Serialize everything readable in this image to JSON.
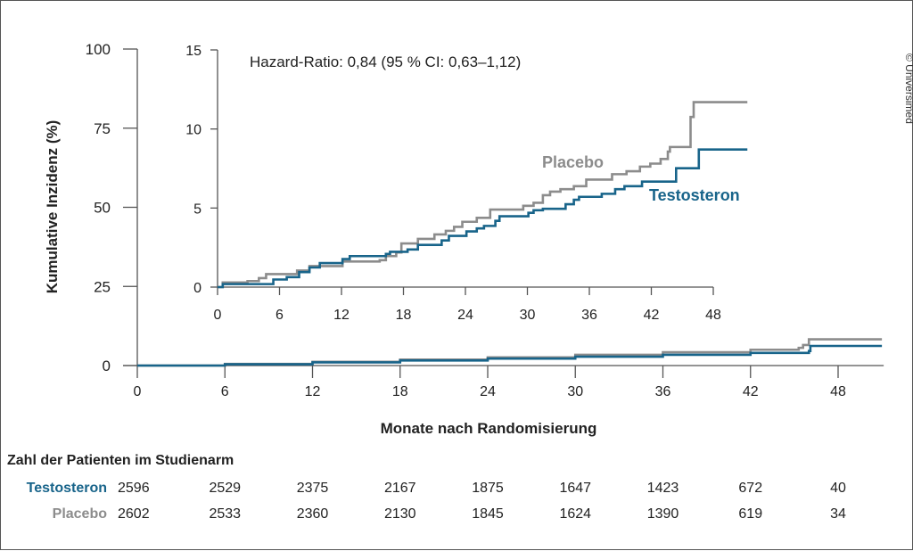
{
  "colors": {
    "testosteron": "#18648a",
    "placebo": "#8c8c8c",
    "axis": "#555555"
  },
  "copyright": "© Universimed",
  "chart_data": [
    {
      "type": "line",
      "step": true,
      "xlabel": "Monate nach Randomisierung",
      "ylabel": "Kumulative Inzidenz (%)",
      "xlim": [
        0,
        51
      ],
      "ylim": [
        0,
        100
      ],
      "xticks": [
        0,
        6,
        12,
        18,
        24,
        30,
        36,
        42,
        48
      ],
      "yticks": [
        0,
        25,
        50,
        75,
        100
      ],
      "series": [
        {
          "name": "Placebo",
          "points": [
            [
              0,
              0
            ],
            [
              6,
              0.5
            ],
            [
              12,
              1.2
            ],
            [
              18,
              1.9
            ],
            [
              24,
              2.6
            ],
            [
              30,
              3.4
            ],
            [
              36,
              4.2
            ],
            [
              42,
              5.0
            ],
            [
              45.3,
              5.6
            ],
            [
              45.6,
              6.5
            ],
            [
              46,
              8.3
            ],
            [
              51,
              8.3
            ]
          ]
        },
        {
          "name": "Testosteron",
          "points": [
            [
              0,
              0
            ],
            [
              6,
              0.4
            ],
            [
              12,
              1.0
            ],
            [
              18,
              1.6
            ],
            [
              24,
              2.2
            ],
            [
              30,
              2.8
            ],
            [
              36,
              3.4
            ],
            [
              42,
              4.0
            ],
            [
              46,
              4.6
            ],
            [
              46.1,
              6.2
            ],
            [
              51,
              6.2
            ]
          ]
        }
      ],
      "risk_table": {
        "title": "Zahl der Patienten im Studienarm",
        "rows": [
          {
            "name": "Testosteron",
            "values": [
              2596,
              2529,
              2375,
              2167,
              1875,
              1647,
              1423,
              672,
              40
            ]
          },
          {
            "name": "Placebo",
            "values": [
              2602,
              2533,
              2360,
              2130,
              1845,
              1624,
              1390,
              619,
              34
            ]
          }
        ]
      }
    },
    {
      "type": "line",
      "step": true,
      "annotation": "Hazard-Ratio: 0,84 (95 % CI: 0,63–1,12)",
      "xlim": [
        0,
        51
      ],
      "ylim": [
        0,
        15
      ],
      "xticks": [
        0,
        6,
        12,
        18,
        24,
        30,
        36,
        42,
        48
      ],
      "yticks": [
        0,
        5,
        10,
        15
      ],
      "series": [
        {
          "name": "Placebo",
          "points": [
            [
              0,
              0
            ],
            [
              0.5,
              0.29
            ],
            [
              2.9,
              0.38
            ],
            [
              4.0,
              0.57
            ],
            [
              4.7,
              0.82
            ],
            [
              7.7,
              1.05
            ],
            [
              8.9,
              1.33
            ],
            [
              12.1,
              1.62
            ],
            [
              15.7,
              1.7
            ],
            [
              16.3,
              1.96
            ],
            [
              17.3,
              2.19
            ],
            [
              17.8,
              2.76
            ],
            [
              19.4,
              3.05
            ],
            [
              21.0,
              3.33
            ],
            [
              22.1,
              3.56
            ],
            [
              22.9,
              3.81
            ],
            [
              23.7,
              4.13
            ],
            [
              25.1,
              4.38
            ],
            [
              26.4,
              4.9
            ],
            [
              29.6,
              5.14
            ],
            [
              30.6,
              5.33
            ],
            [
              31.5,
              5.81
            ],
            [
              32.2,
              6.04
            ],
            [
              33.2,
              6.19
            ],
            [
              34.5,
              6.38
            ],
            [
              35.7,
              6.8
            ],
            [
              38.2,
              7.14
            ],
            [
              39.6,
              7.33
            ],
            [
              40.9,
              7.62
            ],
            [
              41.9,
              7.81
            ],
            [
              42.9,
              8.1
            ],
            [
              43.6,
              8.57
            ],
            [
              43.8,
              8.86
            ],
            [
              45.8,
              10.76
            ],
            [
              46.1,
              11.7
            ],
            [
              51.3,
              11.7
            ]
          ]
        },
        {
          "name": "Testosteron",
          "points": [
            [
              0,
              0
            ],
            [
              0.5,
              0.19
            ],
            [
              5.4,
              0.48
            ],
            [
              6.7,
              0.63
            ],
            [
              7.9,
              0.95
            ],
            [
              8.9,
              1.24
            ],
            [
              9.9,
              1.52
            ],
            [
              12.1,
              1.77
            ],
            [
              12.8,
              1.96
            ],
            [
              16.3,
              2.1
            ],
            [
              16.7,
              2.23
            ],
            [
              18.4,
              2.38
            ],
            [
              19.4,
              2.67
            ],
            [
              21.7,
              2.95
            ],
            [
              22.4,
              3.24
            ],
            [
              24.1,
              3.52
            ],
            [
              25.1,
              3.71
            ],
            [
              25.8,
              3.87
            ],
            [
              26.9,
              4.19
            ],
            [
              27.3,
              4.48
            ],
            [
              30.1,
              4.7
            ],
            [
              30.6,
              4.86
            ],
            [
              31.5,
              4.95
            ],
            [
              33.7,
              5.24
            ],
            [
              34.5,
              5.52
            ],
            [
              35.0,
              5.71
            ],
            [
              37.2,
              5.9
            ],
            [
              38.5,
              6.19
            ],
            [
              39.4,
              6.38
            ],
            [
              41.1,
              6.67
            ],
            [
              44.4,
              6.99
            ],
            [
              44.4,
              7.52
            ],
            [
              46.6,
              7.52
            ],
            [
              46.6,
              8.7
            ],
            [
              51.3,
              8.7
            ]
          ]
        }
      ]
    }
  ]
}
